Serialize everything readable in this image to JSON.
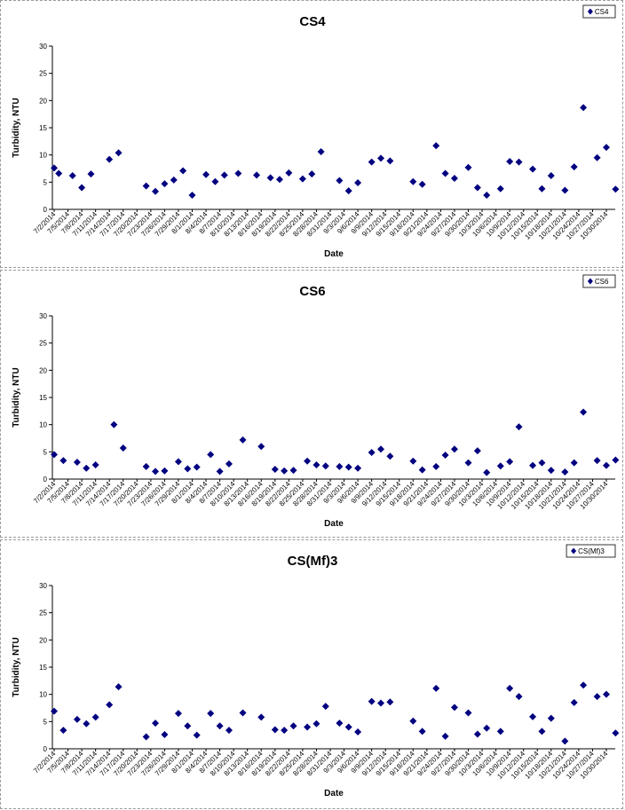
{
  "chart_data": [
    {
      "type": "scatter",
      "title": "CS4",
      "xlabel": "Date",
      "ylabel": "Turbidity, NTU",
      "ylim": [
        0,
        30
      ],
      "yticks": [
        0,
        5,
        10,
        15,
        20,
        25,
        30
      ],
      "legend_position": "top-right",
      "series": [
        {
          "name": "CS4",
          "color": "#000080",
          "marker": "diamond",
          "points": [
            {
              "x": "7/2/2014",
              "y": 7.6
            },
            {
              "x": "7/3/2014",
              "y": 6.6
            },
            {
              "x": "7/6/2014",
              "y": 6.2
            },
            {
              "x": "7/8/2014",
              "y": 4.0
            },
            {
              "x": "7/10/2014",
              "y": 6.5
            },
            {
              "x": "7/14/2014",
              "y": 9.2
            },
            {
              "x": "7/16/2014",
              "y": 10.4
            },
            {
              "x": "7/22/2014",
              "y": 4.3
            },
            {
              "x": "7/24/2014",
              "y": 3.3
            },
            {
              "x": "7/26/2014",
              "y": 4.7
            },
            {
              "x": "7/28/2014",
              "y": 5.4
            },
            {
              "x": "7/30/2014",
              "y": 7.1
            },
            {
              "x": "8/1/2014",
              "y": 2.6
            },
            {
              "x": "8/4/2014",
              "y": 6.4
            },
            {
              "x": "8/6/2014",
              "y": 5.1
            },
            {
              "x": "8/8/2014",
              "y": 6.3
            },
            {
              "x": "8/11/2014",
              "y": 6.6
            },
            {
              "x": "8/15/2014",
              "y": 6.3
            },
            {
              "x": "8/18/2014",
              "y": 5.8
            },
            {
              "x": "8/20/2014",
              "y": 5.5
            },
            {
              "x": "8/22/2014",
              "y": 6.7
            },
            {
              "x": "8/25/2014",
              "y": 5.6
            },
            {
              "x": "8/27/2014",
              "y": 6.5
            },
            {
              "x": "8/29/2014",
              "y": 10.6
            },
            {
              "x": "9/2/2014",
              "y": 5.3
            },
            {
              "x": "9/4/2014",
              "y": 3.4
            },
            {
              "x": "9/6/2014",
              "y": 4.9
            },
            {
              "x": "9/9/2014",
              "y": 8.7
            },
            {
              "x": "9/11/2014",
              "y": 9.4
            },
            {
              "x": "9/13/2014",
              "y": 8.9
            },
            {
              "x": "9/18/2014",
              "y": 5.1
            },
            {
              "x": "9/20/2014",
              "y": 4.6
            },
            {
              "x": "9/23/2014",
              "y": 11.7
            },
            {
              "x": "9/25/2014",
              "y": 6.6
            },
            {
              "x": "9/27/2014",
              "y": 5.7
            },
            {
              "x": "9/30/2014",
              "y": 7.7
            },
            {
              "x": "10/2/2014",
              "y": 4.0
            },
            {
              "x": "10/4/2014",
              "y": 2.6
            },
            {
              "x": "10/7/2014",
              "y": 3.8
            },
            {
              "x": "10/9/2014",
              "y": 8.8
            },
            {
              "x": "10/11/2014",
              "y": 8.7
            },
            {
              "x": "10/14/2014",
              "y": 7.4
            },
            {
              "x": "10/16/2014",
              "y": 3.8
            },
            {
              "x": "10/18/2014",
              "y": 6.2
            },
            {
              "x": "10/21/2014",
              "y": 3.5
            },
            {
              "x": "10/23/2014",
              "y": 7.8
            },
            {
              "x": "10/25/2014",
              "y": 18.7
            },
            {
              "x": "10/28/2014",
              "y": 9.5
            },
            {
              "x": "10/30/2014",
              "y": 11.4
            },
            {
              "x": "11/1/2014",
              "y": 3.7
            }
          ]
        }
      ]
    },
    {
      "type": "scatter",
      "title": "CS6",
      "xlabel": "Date",
      "ylabel": "Turbidity, NTU",
      "ylim": [
        0,
        30
      ],
      "yticks": [
        0,
        5,
        10,
        15,
        20,
        25,
        30
      ],
      "legend_position": "top-right",
      "series": [
        {
          "name": "CS6",
          "color": "#000080",
          "marker": "diamond",
          "points": [
            {
              "x": "7/2/2014",
              "y": 4.5
            },
            {
              "x": "7/4/2014",
              "y": 3.4
            },
            {
              "x": "7/7/2014",
              "y": 3.1
            },
            {
              "x": "7/9/2014",
              "y": 2.0
            },
            {
              "x": "7/11/2014",
              "y": 2.6
            },
            {
              "x": "7/15/2014",
              "y": 10.0
            },
            {
              "x": "7/17/2014",
              "y": 5.7
            },
            {
              "x": "7/22/2014",
              "y": 2.3
            },
            {
              "x": "7/24/2014",
              "y": 1.4
            },
            {
              "x": "7/26/2014",
              "y": 1.5
            },
            {
              "x": "7/29/2014",
              "y": 3.2
            },
            {
              "x": "7/31/2014",
              "y": 1.9
            },
            {
              "x": "8/2/2014",
              "y": 2.2
            },
            {
              "x": "8/5/2014",
              "y": 4.5
            },
            {
              "x": "8/7/2014",
              "y": 1.4
            },
            {
              "x": "8/9/2014",
              "y": 2.8
            },
            {
              "x": "8/12/2014",
              "y": 7.2
            },
            {
              "x": "8/16/2014",
              "y": 6.0
            },
            {
              "x": "8/19/2014",
              "y": 1.8
            },
            {
              "x": "8/21/2014",
              "y": 1.5
            },
            {
              "x": "8/23/2014",
              "y": 1.6
            },
            {
              "x": "8/26/2014",
              "y": 3.3
            },
            {
              "x": "8/28/2014",
              "y": 2.6
            },
            {
              "x": "8/30/2014",
              "y": 2.4
            },
            {
              "x": "9/2/2014",
              "y": 2.3
            },
            {
              "x": "9/4/2014",
              "y": 2.2
            },
            {
              "x": "9/6/2014",
              "y": 2.0
            },
            {
              "x": "9/9/2014",
              "y": 4.9
            },
            {
              "x": "9/11/2014",
              "y": 5.5
            },
            {
              "x": "9/13/2014",
              "y": 4.2
            },
            {
              "x": "9/18/2014",
              "y": 3.3
            },
            {
              "x": "9/20/2014",
              "y": 1.7
            },
            {
              "x": "9/23/2014",
              "y": 2.3
            },
            {
              "x": "9/25/2014",
              "y": 4.4
            },
            {
              "x": "9/27/2014",
              "y": 5.5
            },
            {
              "x": "9/30/2014",
              "y": 3.0
            },
            {
              "x": "10/2/2014",
              "y": 5.2
            },
            {
              "x": "10/4/2014",
              "y": 1.2
            },
            {
              "x": "10/7/2014",
              "y": 2.4
            },
            {
              "x": "10/9/2014",
              "y": 3.2
            },
            {
              "x": "10/11/2014",
              "y": 9.6
            },
            {
              "x": "10/14/2014",
              "y": 2.5
            },
            {
              "x": "10/16/2014",
              "y": 3.0
            },
            {
              "x": "10/18/2014",
              "y": 1.6
            },
            {
              "x": "10/21/2014",
              "y": 1.3
            },
            {
              "x": "10/23/2014",
              "y": 3.0
            },
            {
              "x": "10/25/2014",
              "y": 12.3
            },
            {
              "x": "10/28/2014",
              "y": 3.4
            },
            {
              "x": "10/30/2014",
              "y": 2.5
            },
            {
              "x": "11/1/2014",
              "y": 3.5
            }
          ]
        }
      ]
    },
    {
      "type": "scatter",
      "title": "CS(Mf)3",
      "xlabel": "Date",
      "ylabel": "Turbidity, NTU",
      "ylim": [
        0,
        30
      ],
      "yticks": [
        0,
        5,
        10,
        15,
        20,
        25,
        30
      ],
      "legend_position": "top-right",
      "series": [
        {
          "name": "CS(Mf)3",
          "color": "#000080",
          "marker": "diamond",
          "points": [
            {
              "x": "7/2/2014",
              "y": 6.9
            },
            {
              "x": "7/4/2014",
              "y": 3.4
            },
            {
              "x": "7/7/2014",
              "y": 5.4
            },
            {
              "x": "7/9/2014",
              "y": 4.6
            },
            {
              "x": "7/11/2014",
              "y": 5.8
            },
            {
              "x": "7/14/2014",
              "y": 8.1
            },
            {
              "x": "7/16/2014",
              "y": 11.4
            },
            {
              "x": "7/22/2014",
              "y": 2.2
            },
            {
              "x": "7/24/2014",
              "y": 4.7
            },
            {
              "x": "7/26/2014",
              "y": 2.6
            },
            {
              "x": "7/29/2014",
              "y": 6.5
            },
            {
              "x": "7/31/2014",
              "y": 4.2
            },
            {
              "x": "8/2/2014",
              "y": 2.5
            },
            {
              "x": "8/5/2014",
              "y": 6.5
            },
            {
              "x": "8/7/2014",
              "y": 4.2
            },
            {
              "x": "8/9/2014",
              "y": 3.4
            },
            {
              "x": "8/12/2014",
              "y": 6.6
            },
            {
              "x": "8/16/2014",
              "y": 5.8
            },
            {
              "x": "8/19/2014",
              "y": 3.5
            },
            {
              "x": "8/21/2014",
              "y": 3.4
            },
            {
              "x": "8/23/2014",
              "y": 4.2
            },
            {
              "x": "8/26/2014",
              "y": 4.0
            },
            {
              "x": "8/28/2014",
              "y": 4.6
            },
            {
              "x": "8/30/2014",
              "y": 7.8
            },
            {
              "x": "9/2/2014",
              "y": 4.7
            },
            {
              "x": "9/4/2014",
              "y": 4.0
            },
            {
              "x": "9/6/2014",
              "y": 3.1
            },
            {
              "x": "9/9/2014",
              "y": 8.7
            },
            {
              "x": "9/11/2014",
              "y": 8.4
            },
            {
              "x": "9/13/2014",
              "y": 8.6
            },
            {
              "x": "9/18/2014",
              "y": 5.1
            },
            {
              "x": "9/20/2014",
              "y": 3.2
            },
            {
              "x": "9/23/2014",
              "y": 11.1
            },
            {
              "x": "9/25/2014",
              "y": 2.3
            },
            {
              "x": "9/27/2014",
              "y": 7.6
            },
            {
              "x": "9/30/2014",
              "y": 6.6
            },
            {
              "x": "10/2/2014",
              "y": 2.7
            },
            {
              "x": "10/4/2014",
              "y": 3.8
            },
            {
              "x": "10/7/2014",
              "y": 3.2
            },
            {
              "x": "10/9/2014",
              "y": 11.1
            },
            {
              "x": "10/11/2014",
              "y": 9.6
            },
            {
              "x": "10/14/2014",
              "y": 5.9
            },
            {
              "x": "10/16/2014",
              "y": 3.2
            },
            {
              "x": "10/18/2014",
              "y": 5.6
            },
            {
              "x": "10/21/2014",
              "y": 1.4
            },
            {
              "x": "10/23/2014",
              "y": 8.5
            },
            {
              "x": "10/25/2014",
              "y": 11.7
            },
            {
              "x": "10/28/2014",
              "y": 9.6
            },
            {
              "x": "10/30/2014",
              "y": 10.0
            },
            {
              "x": "11/1/2014",
              "y": 2.9
            }
          ]
        }
      ]
    }
  ],
  "x_tick_labels": [
    "7/2/2014",
    "7/5/2014",
    "7/8/2014",
    "7/11/2014",
    "7/14/2014",
    "7/17/2014",
    "7/20/2014",
    "7/23/2014",
    "7/26/2014",
    "7/29/2014",
    "8/1/2014",
    "8/4/2014",
    "8/7/2014",
    "8/10/2014",
    "8/13/2014",
    "8/16/2014",
    "8/19/2014",
    "8/22/2014",
    "8/25/2014",
    "8/28/2014",
    "8/31/2014",
    "9/3/2014",
    "9/6/2014",
    "9/9/2014",
    "9/12/2014",
    "9/15/2014",
    "9/18/2014",
    "9/21/2014",
    "9/24/2014",
    "9/27/2014",
    "9/30/2014",
    "10/3/2014",
    "10/6/2014",
    "10/9/2014",
    "10/12/2014",
    "10/15/2014",
    "10/18/2014",
    "10/21/2014",
    "10/24/2014",
    "10/27/2014",
    "10/30/2014"
  ]
}
